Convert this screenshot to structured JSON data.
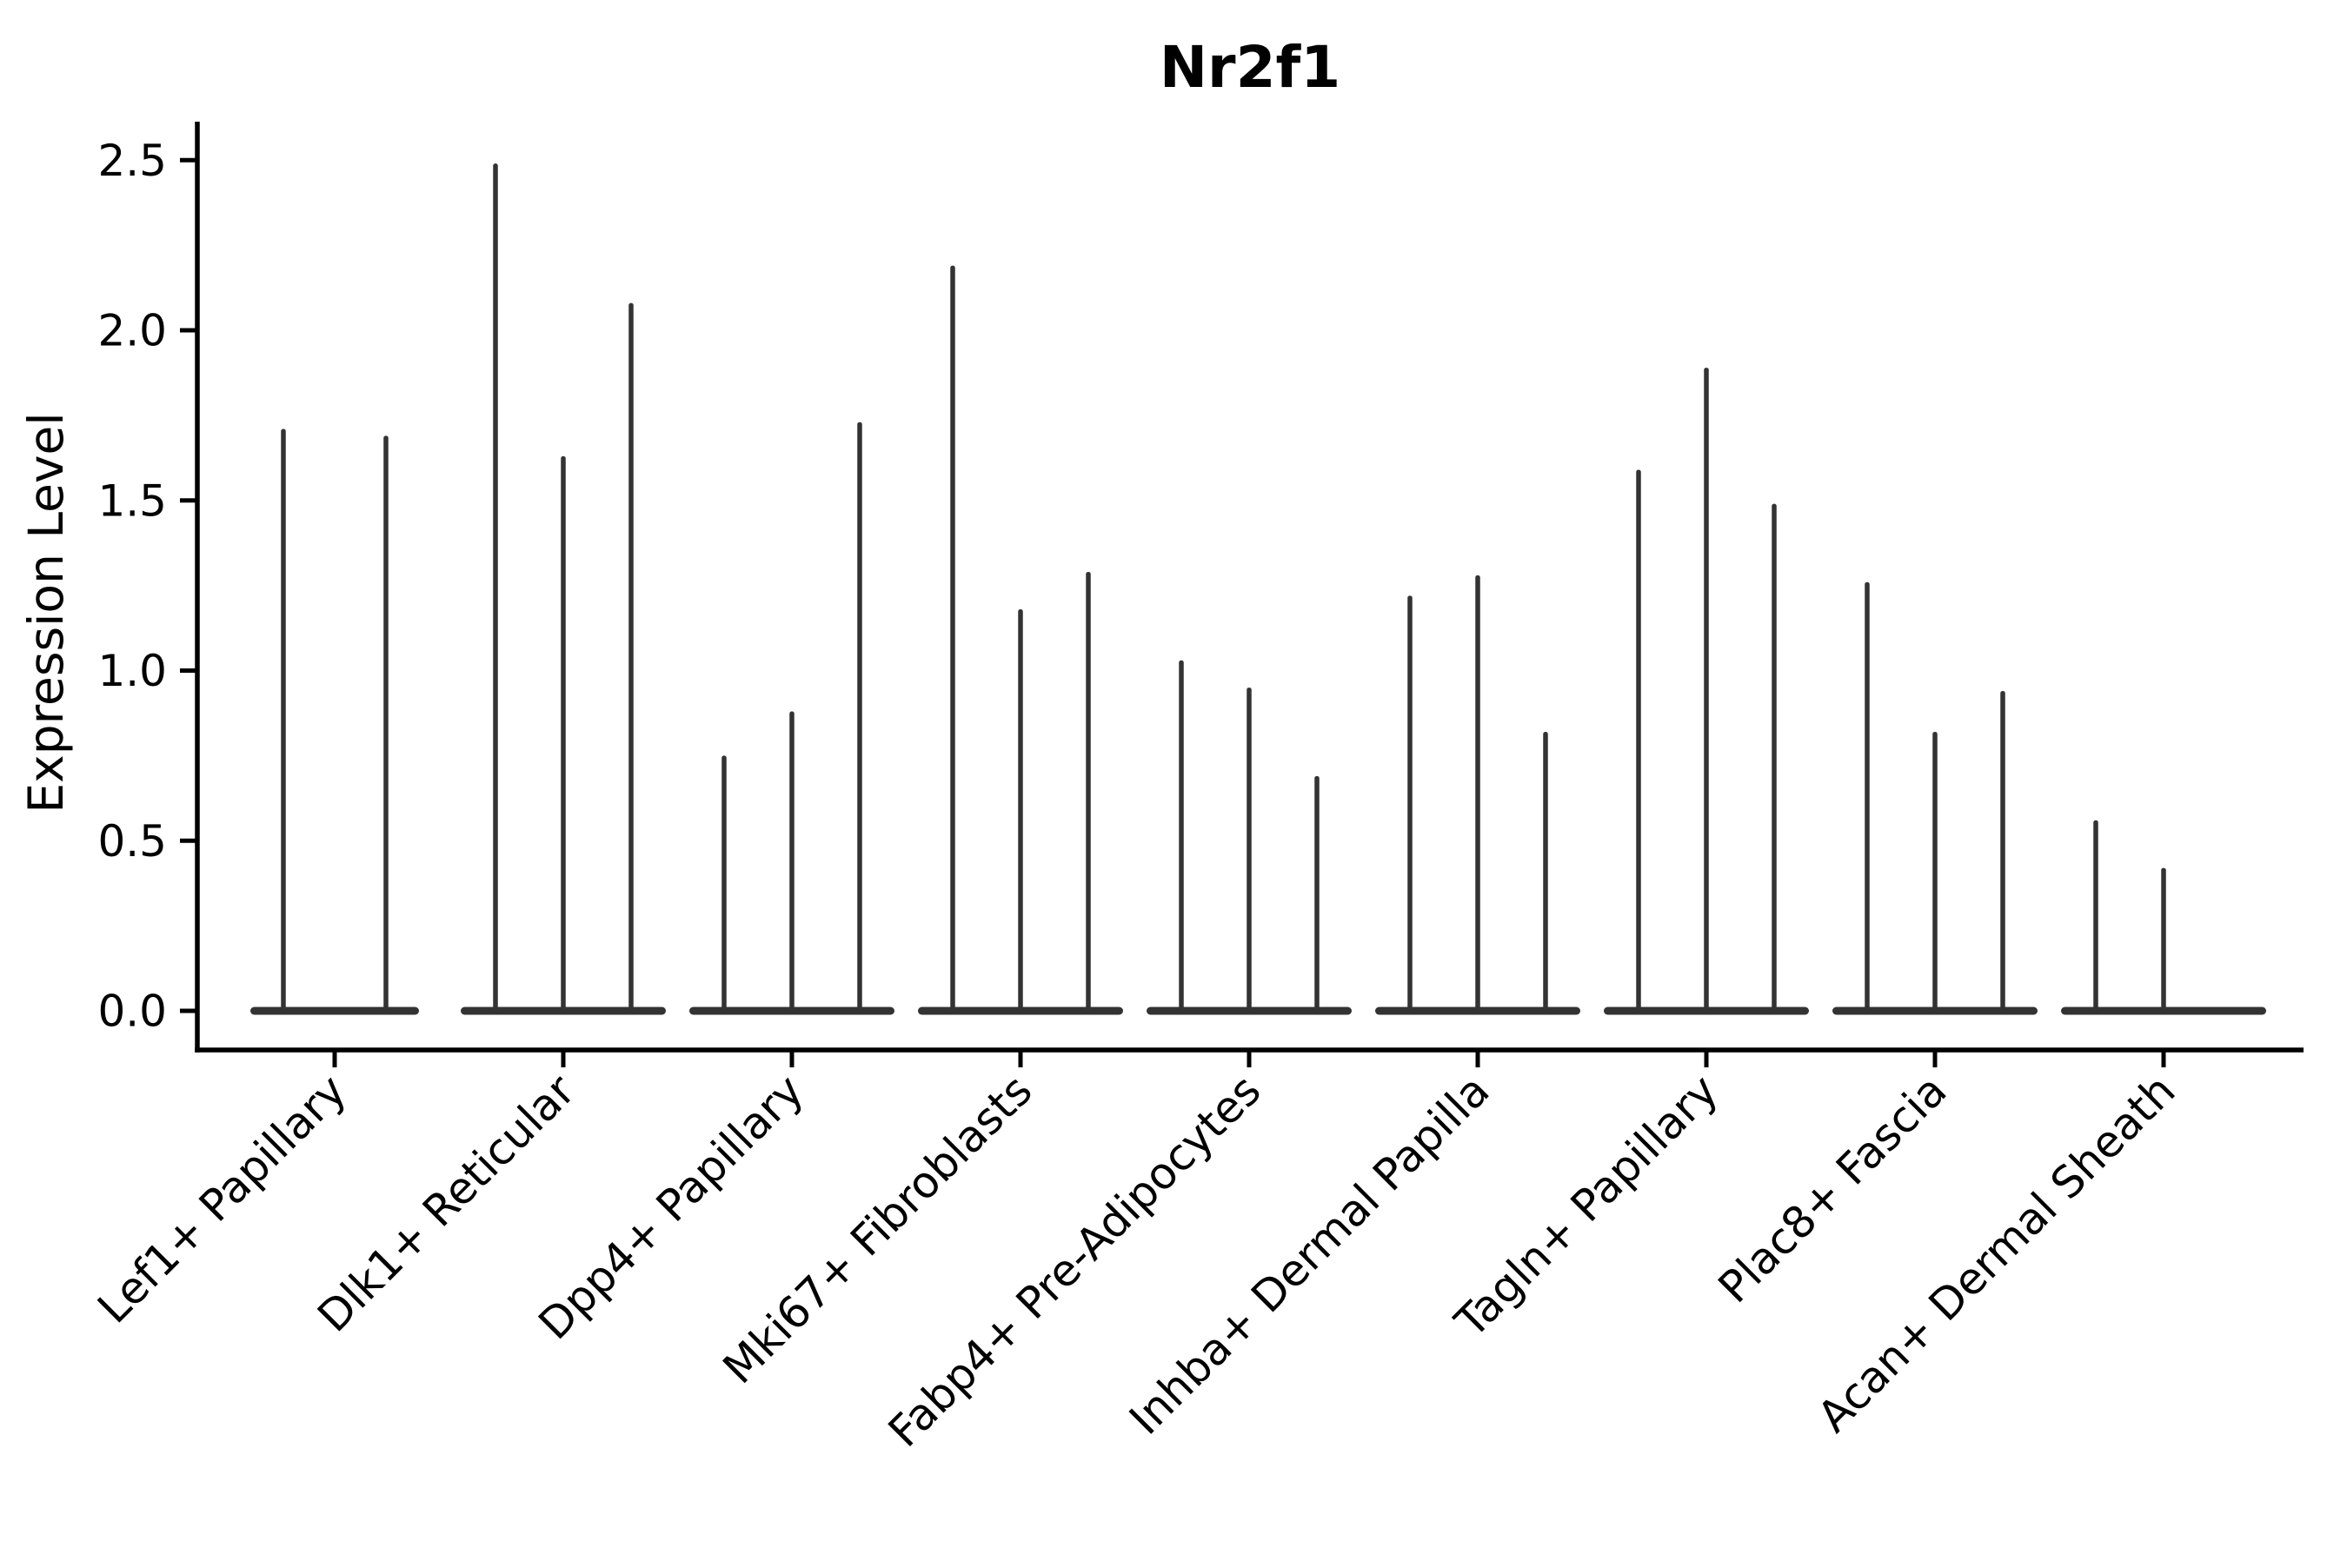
{
  "figure": {
    "title": "Nr2f1",
    "ylabel": "Expression Level"
  },
  "chart_data": {
    "type": "violin",
    "title": "Nr2f1",
    "xlabel": "",
    "ylabel": "Expression Level",
    "yticks": [
      "0.0",
      "0.5",
      "1.0",
      "1.5",
      "2.0",
      "2.5"
    ],
    "ylim": [
      -0.12,
      2.61
    ],
    "grid": false,
    "legend": null,
    "background": "#ffffff",
    "colors": {
      "violin": "#333333",
      "axis": "#000000",
      "text": "#000000"
    },
    "description": "Single-cell expression violin plot; each cluster has 2-3 very thin spike-like violins (mass at 0 with a narrow spike up to the max expression value).",
    "categories": [
      "Lef1+ Papillary",
      "Dlk1+ Reticular",
      "Dpp4+ Papillary",
      "Mki67+ Fibroblasts",
      "Fabp4+ Pre-Adipocytes",
      "Inhba+ Dermal Papilla",
      "Tagln+ Papillary",
      "Plac8+ Fascia",
      "Acan+ Dermal Sheath"
    ],
    "violins": [
      {
        "category": "Lef1+ Papillary",
        "spike_maxima": [
          1.71,
          1.69
        ],
        "offsets": [
          -59,
          59
        ],
        "base_halfwidth": 97
      },
      {
        "category": "Dlk1+ Reticular",
        "spike_maxima": [
          2.49,
          1.63,
          2.08
        ],
        "offsets": [
          -78,
          0,
          78
        ],
        "base_halfwidth": 118
      },
      {
        "category": "Dpp4+ Papillary",
        "spike_maxima": [
          0.75,
          0.88,
          1.73
        ],
        "offsets": [
          -78,
          0,
          78
        ],
        "base_halfwidth": 118
      },
      {
        "category": "Mki67+ Fibroblasts",
        "spike_maxima": [
          2.19,
          1.18,
          1.29
        ],
        "offsets": [
          -78,
          0,
          78
        ],
        "base_halfwidth": 118
      },
      {
        "category": "Fabp4+ Pre-Adipocytes",
        "spike_maxima": [
          1.03,
          0.95,
          0.69
        ],
        "offsets": [
          -78,
          0,
          78
        ],
        "base_halfwidth": 118
      },
      {
        "category": "Inhba+ Dermal Papilla",
        "spike_maxima": [
          1.22,
          1.28,
          0.82
        ],
        "offsets": [
          -78,
          0,
          78
        ],
        "base_halfwidth": 118
      },
      {
        "category": "Tagln+ Papillary",
        "spike_maxima": [
          1.59,
          1.89,
          1.49
        ],
        "offsets": [
          -78,
          0,
          78
        ],
        "base_halfwidth": 118
      },
      {
        "category": "Plac8+ Fascia",
        "spike_maxima": [
          1.26,
          0.82,
          0.94
        ],
        "offsets": [
          -78,
          0,
          78
        ],
        "base_halfwidth": 118
      },
      {
        "category": "Acan+ Dermal Sheath",
        "spike_maxima": [
          0.56,
          0.42
        ],
        "offsets": [
          -78,
          0
        ],
        "base_halfwidth": 118
      }
    ]
  }
}
